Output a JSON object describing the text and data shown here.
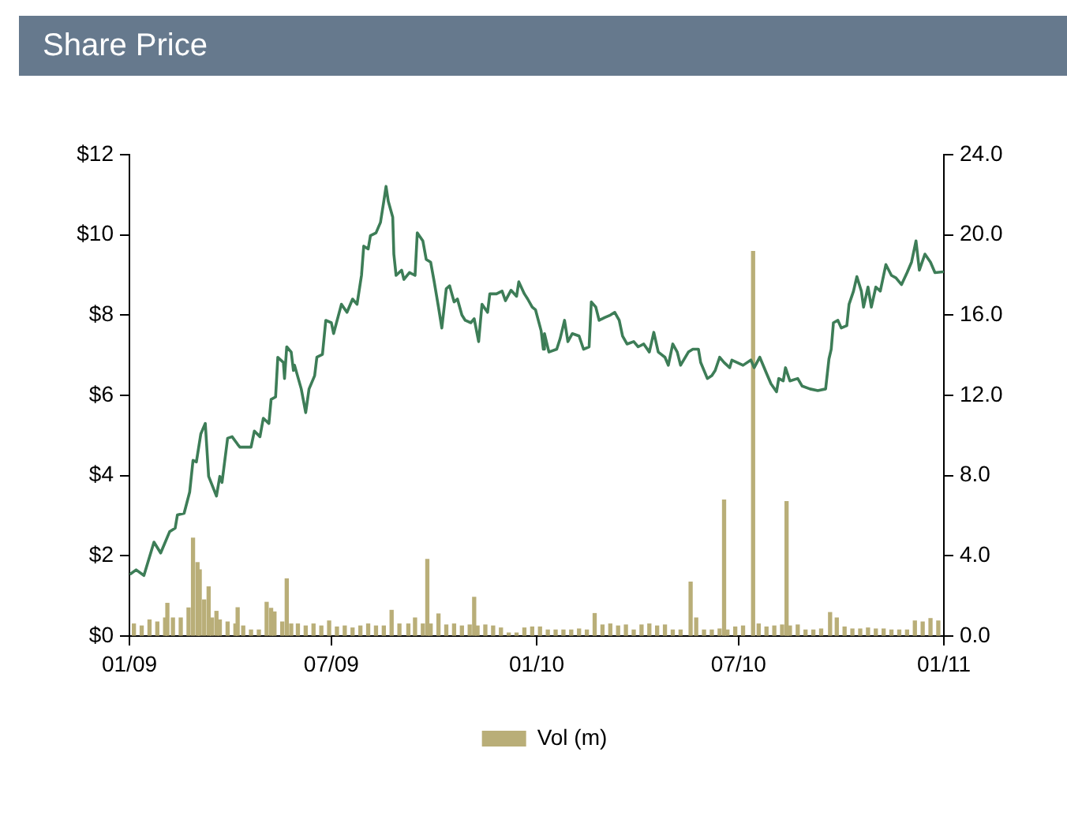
{
  "chart_data": {
    "type": "line",
    "title": "Share Price",
    "xlim": [
      "2009-01-01",
      "2011-01-01"
    ],
    "xticks": [
      {
        "value": "2009-01-01",
        "label": "01/09"
      },
      {
        "value": "2009-07-01",
        "label": "07/09"
      },
      {
        "value": "2010-01-01",
        "label": "01/10"
      },
      {
        "value": "2010-07-01",
        "label": "07/10"
      },
      {
        "value": "2011-01-01",
        "label": "01/11"
      }
    ],
    "ylim": [
      0,
      12
    ],
    "yticks": [
      {
        "value": 0,
        "label": "$0"
      },
      {
        "value": 2,
        "label": "$2"
      },
      {
        "value": 4,
        "label": "$4"
      },
      {
        "value": 6,
        "label": "$6"
      },
      {
        "value": 8,
        "label": "$8"
      },
      {
        "value": 10,
        "label": "$10"
      },
      {
        "value": 12,
        "label": "$12"
      }
    ],
    "y2lim": [
      0,
      24
    ],
    "y2ticks": [
      {
        "value": 0,
        "label": "0.0"
      },
      {
        "value": 4,
        "label": "4.0"
      },
      {
        "value": 8,
        "label": "8.0"
      },
      {
        "value": 12,
        "label": "12.0"
      },
      {
        "value": 16,
        "label": "16.0"
      },
      {
        "value": 20,
        "label": "20.0"
      },
      {
        "value": 24,
        "label": "24.0"
      }
    ],
    "legend": "bottom",
    "series": [
      {
        "name": "Vol (m)",
        "type": "bar",
        "axis": "y2",
        "color": "#b9ae78",
        "x": [
          "2009-01-05",
          "2009-01-12",
          "2009-01-19",
          "2009-01-26",
          "2009-02-02",
          "2009-02-04",
          "2009-02-09",
          "2009-02-16",
          "2009-02-23",
          "2009-02-27",
          "2009-03-03",
          "2009-03-05",
          "2009-03-09",
          "2009-03-13",
          "2009-03-16",
          "2009-03-20",
          "2009-03-23",
          "2009-03-30",
          "2009-04-06",
          "2009-04-08",
          "2009-04-13",
          "2009-04-20",
          "2009-04-27",
          "2009-05-04",
          "2009-05-08",
          "2009-05-11",
          "2009-05-18",
          "2009-05-22",
          "2009-05-26",
          "2009-06-01",
          "2009-06-08",
          "2009-06-15",
          "2009-06-22",
          "2009-06-29",
          "2009-07-06",
          "2009-07-13",
          "2009-07-20",
          "2009-07-27",
          "2009-08-03",
          "2009-08-10",
          "2009-08-17",
          "2009-08-24",
          "2009-08-31",
          "2009-09-08",
          "2009-09-14",
          "2009-09-21",
          "2009-09-25",
          "2009-09-28",
          "2009-10-05",
          "2009-10-12",
          "2009-10-19",
          "2009-10-26",
          "2009-11-02",
          "2009-11-06",
          "2009-11-09",
          "2009-11-16",
          "2009-11-23",
          "2009-11-30",
          "2009-12-07",
          "2009-12-14",
          "2009-12-21",
          "2009-12-28",
          "2010-01-04",
          "2010-01-11",
          "2010-01-18",
          "2010-01-25",
          "2010-02-01",
          "2010-02-08",
          "2010-02-15",
          "2010-02-22",
          "2010-03-01",
          "2010-03-08",
          "2010-03-15",
          "2010-03-22",
          "2010-03-29",
          "2010-04-05",
          "2010-04-12",
          "2010-04-19",
          "2010-04-26",
          "2010-05-03",
          "2010-05-10",
          "2010-05-19",
          "2010-05-24",
          "2010-05-31",
          "2010-06-07",
          "2010-06-14",
          "2010-06-18",
          "2010-06-21",
          "2010-06-28",
          "2010-07-05",
          "2010-07-14",
          "2010-07-19",
          "2010-07-26",
          "2010-08-02",
          "2010-08-09",
          "2010-08-13",
          "2010-08-16",
          "2010-08-23",
          "2010-08-30",
          "2010-09-06",
          "2010-09-13",
          "2010-09-21",
          "2010-09-27",
          "2010-10-04",
          "2010-10-11",
          "2010-10-18",
          "2010-10-25",
          "2010-11-01",
          "2010-11-08",
          "2010-11-15",
          "2010-11-22",
          "2010-11-29",
          "2010-12-06",
          "2010-12-13",
          "2010-12-20",
          "2010-12-27"
        ],
        "values": [
          0.6,
          0.5,
          0.8,
          0.7,
          0.9,
          1.63,
          0.9,
          0.9,
          1.4,
          4.88,
          3.66,
          3.3,
          1.8,
          2.45,
          0.9,
          1.23,
          0.8,
          0.7,
          0.6,
          1.41,
          0.5,
          0.3,
          0.3,
          1.68,
          1.38,
          1.2,
          0.7,
          2.85,
          0.6,
          0.6,
          0.5,
          0.6,
          0.5,
          0.75,
          0.45,
          0.5,
          0.4,
          0.5,
          0.6,
          0.5,
          0.5,
          1.28,
          0.6,
          0.6,
          0.9,
          0.6,
          3.82,
          0.6,
          1.1,
          0.55,
          0.6,
          0.5,
          0.55,
          1.93,
          0.5,
          0.55,
          0.5,
          0.4,
          0.15,
          0.15,
          0.4,
          0.45,
          0.45,
          0.3,
          0.3,
          0.3,
          0.3,
          0.35,
          0.3,
          1.12,
          0.55,
          0.6,
          0.5,
          0.55,
          0.3,
          0.55,
          0.6,
          0.5,
          0.55,
          0.3,
          0.3,
          2.69,
          0.9,
          0.3,
          0.3,
          0.35,
          6.78,
          0.3,
          0.45,
          0.5,
          19.17,
          0.6,
          0.45,
          0.5,
          0.55,
          6.7,
          0.5,
          0.55,
          0.3,
          0.3,
          0.35,
          1.17,
          0.9,
          0.45,
          0.35,
          0.35,
          0.4,
          0.35,
          0.35,
          0.3,
          0.3,
          0.3,
          0.75,
          0.7,
          0.87,
          0.75
        ]
      },
      {
        "color": "#3d7d57",
        "x": [
          "2009-01-02",
          "2009-01-07",
          "2009-01-14",
          "2009-01-23",
          "2009-01-29",
          "2009-02-06",
          "2009-02-11",
          "2009-02-13",
          "2009-02-19",
          "2009-02-24",
          "2009-02-27",
          "2009-03-02",
          "2009-03-06",
          "2009-03-10",
          "2009-03-13",
          "2009-03-20",
          "2009-03-23",
          "2009-03-25",
          "2009-03-30",
          "2009-04-03",
          "2009-04-08",
          "2009-04-10",
          "2009-04-20",
          "2009-04-23",
          "2009-04-28",
          "2009-05-01",
          "2009-05-06",
          "2009-05-08",
          "2009-05-12",
          "2009-05-14",
          "2009-05-19",
          "2009-05-20",
          "2009-05-22",
          "2009-05-26",
          "2009-05-28",
          "2009-05-29",
          "2009-06-04",
          "2009-06-08",
          "2009-06-11",
          "2009-06-16",
          "2009-06-18",
          "2009-06-23",
          "2009-06-26",
          "2009-07-01",
          "2009-07-03",
          "2009-07-10",
          "2009-07-15",
          "2009-07-20",
          "2009-07-24",
          "2009-07-28",
          "2009-07-30",
          "2009-08-03",
          "2009-08-05",
          "2009-08-10",
          "2009-08-14",
          "2009-08-17",
          "2009-08-19",
          "2009-08-21",
          "2009-08-25",
          "2009-08-26",
          "2009-08-28",
          "2009-09-02",
          "2009-09-04",
          "2009-09-09",
          "2009-09-14",
          "2009-09-16",
          "2009-09-21",
          "2009-09-24",
          "2009-09-28",
          "2009-10-01",
          "2009-10-05",
          "2009-10-08",
          "2009-10-12",
          "2009-10-15",
          "2009-10-19",
          "2009-10-22",
          "2009-10-26",
          "2009-10-29",
          "2009-11-03",
          "2009-11-06",
          "2009-11-10",
          "2009-11-13",
          "2009-11-18",
          "2009-11-20",
          "2009-11-26",
          "2009-12-01",
          "2009-12-04",
          "2009-12-09",
          "2009-12-14",
          "2009-12-16",
          "2009-12-21",
          "2009-12-24",
          "2009-12-28",
          "2009-12-31",
          "2010-01-05",
          "2010-01-07",
          "2010-01-08",
          "2010-01-12",
          "2010-01-19",
          "2010-01-22",
          "2010-01-26",
          "2010-01-29",
          "2010-02-02",
          "2010-02-08",
          "2010-02-12",
          "2010-02-17",
          "2010-02-19",
          "2010-02-23",
          "2010-02-26",
          "2010-03-03",
          "2010-03-08",
          "2010-03-12",
          "2010-03-16",
          "2010-03-19",
          "2010-03-23",
          "2010-03-29",
          "2010-04-02",
          "2010-04-07",
          "2010-04-12",
          "2010-04-16",
          "2010-04-20",
          "2010-04-26",
          "2010-04-29",
          "2010-05-03",
          "2010-05-07",
          "2010-05-10",
          "2010-05-17",
          "2010-05-21",
          "2010-05-26",
          "2010-05-28",
          "2010-06-03",
          "2010-06-07",
          "2010-06-10",
          "2010-06-14",
          "2010-06-18",
          "2010-06-23",
          "2010-06-25",
          "2010-07-05",
          "2010-07-12",
          "2010-07-15",
          "2010-07-20",
          "2010-07-26",
          "2010-07-30",
          "2010-08-04",
          "2010-08-06",
          "2010-08-10",
          "2010-08-12",
          "2010-08-16",
          "2010-08-23",
          "2010-08-27",
          "2010-09-03",
          "2010-09-10",
          "2010-09-17",
          "2010-09-20",
          "2010-09-22",
          "2010-09-24",
          "2010-09-28",
          "2010-10-01",
          "2010-10-06",
          "2010-10-08",
          "2010-10-12",
          "2010-10-15",
          "2010-10-19",
          "2010-10-21",
          "2010-10-25",
          "2010-10-28",
          "2010-11-01",
          "2010-11-05",
          "2010-11-10",
          "2010-11-15",
          "2010-11-19",
          "2010-11-24",
          "2010-11-29",
          "2010-12-03",
          "2010-12-07",
          "2010-12-10",
          "2010-12-15",
          "2010-12-20",
          "2010-12-24",
          "2010-12-31"
        ],
        "values": [
          1.55,
          1.65,
          1.51,
          2.34,
          2.07,
          2.6,
          2.69,
          3.02,
          3.06,
          3.59,
          4.38,
          4.34,
          5.04,
          5.3,
          3.98,
          3.49,
          3.98,
          3.83,
          4.93,
          4.97,
          4.78,
          4.71,
          4.71,
          5.11,
          4.97,
          5.43,
          5.3,
          5.9,
          5.96,
          6.95,
          6.82,
          6.42,
          7.21,
          7.08,
          6.62,
          6.75,
          6.16,
          5.57,
          6.16,
          6.49,
          6.95,
          7.02,
          7.87,
          7.81,
          7.54,
          8.27,
          8.07,
          8.4,
          8.27,
          8.99,
          9.72,
          9.65,
          9.98,
          10.05,
          10.31,
          10.84,
          11.21,
          10.84,
          10.44,
          9.52,
          8.99,
          9.12,
          8.89,
          9.06,
          8.99,
          10.05,
          9.85,
          9.39,
          9.32,
          8.86,
          8.2,
          7.68,
          8.66,
          8.73,
          8.33,
          8.4,
          8.0,
          7.87,
          7.81,
          7.91,
          7.34,
          8.27,
          8.07,
          8.53,
          8.53,
          8.6,
          8.36,
          8.62,
          8.47,
          8.83,
          8.53,
          8.4,
          8.2,
          8.13,
          7.61,
          7.15,
          7.54,
          7.08,
          7.15,
          7.41,
          7.87,
          7.34,
          7.54,
          7.48,
          7.15,
          7.21,
          8.33,
          8.2,
          7.87,
          7.94,
          8.0,
          8.07,
          7.87,
          7.48,
          7.28,
          7.34,
          7.21,
          7.28,
          7.08,
          7.57,
          7.08,
          6.95,
          6.75,
          7.28,
          7.08,
          6.75,
          7.08,
          7.15,
          7.15,
          6.82,
          6.42,
          6.49,
          6.62,
          6.95,
          6.82,
          6.69,
          6.88,
          6.75,
          6.88,
          6.69,
          6.95,
          6.55,
          6.29,
          6.09,
          6.42,
          6.36,
          6.69,
          6.36,
          6.42,
          6.23,
          6.16,
          6.12,
          6.16,
          6.91,
          7.15,
          7.81,
          7.87,
          7.68,
          7.74,
          8.27,
          8.6,
          8.96,
          8.6,
          8.2,
          8.7,
          8.2,
          8.7,
          8.6,
          9.26,
          8.99,
          8.93,
          8.76,
          9.06,
          9.32,
          9.85,
          9.12,
          9.52,
          9.32,
          9.06,
          9.08
        ]
      }
    ]
  }
}
